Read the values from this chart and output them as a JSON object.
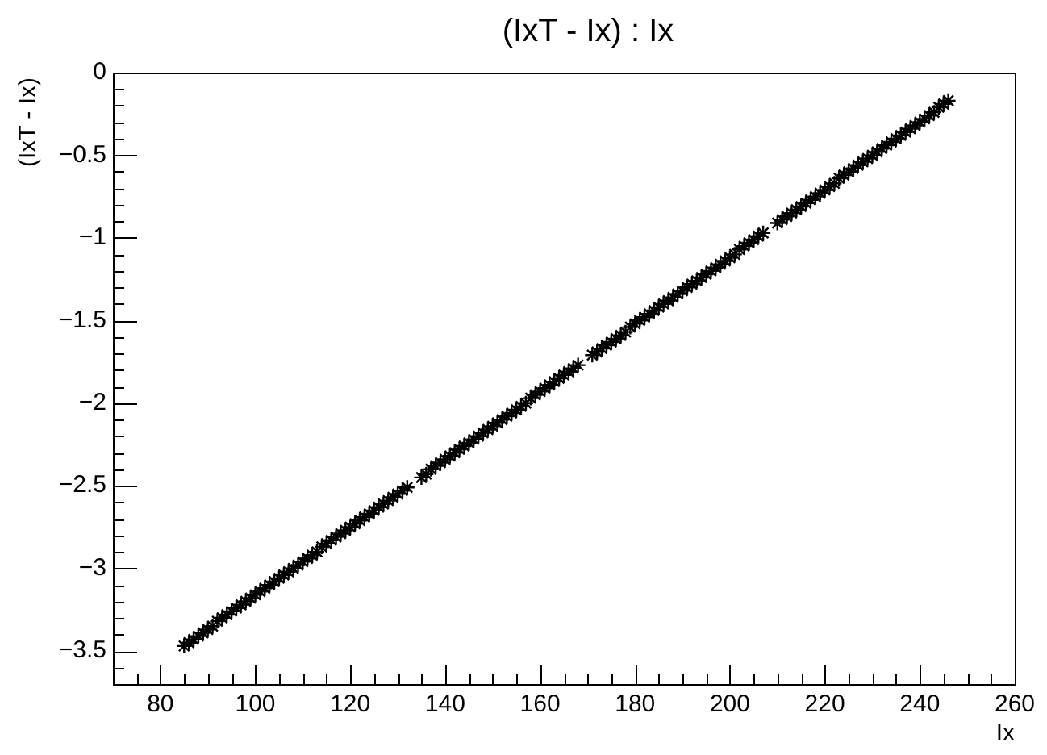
{
  "chart_data": {
    "type": "scatter",
    "title": "(IxT - Ix) : Ix",
    "xlabel": "Ix",
    "ylabel": "(IxT - Ix)",
    "color": "#000000",
    "marker": "cross",
    "xlim": [
      70,
      260
    ],
    "ylim": [
      -3.7,
      0
    ],
    "xticks": [
      {
        "value": 70,
        "label": null
      },
      {
        "value": 75,
        "label": null
      },
      80,
      {
        "value": 85,
        "label": null
      },
      {
        "value": 90,
        "label": null
      },
      {
        "value": 95,
        "label": null
      },
      100,
      {
        "value": 105,
        "label": null
      },
      {
        "value": 110,
        "label": null
      },
      {
        "value": 115,
        "label": null
      },
      120,
      {
        "value": 125,
        "label": null
      },
      {
        "value": 130,
        "label": null
      },
      {
        "value": 135,
        "label": null
      },
      140,
      {
        "value": 145,
        "label": null
      },
      {
        "value": 150,
        "label": null
      },
      {
        "value": 155,
        "label": null
      },
      160,
      {
        "value": 165,
        "label": null
      },
      {
        "value": 170,
        "label": null
      },
      {
        "value": 175,
        "label": null
      },
      180,
      {
        "value": 185,
        "label": null
      },
      {
        "value": 190,
        "label": null
      },
      {
        "value": 195,
        "label": null
      },
      200,
      {
        "value": 205,
        "label": null
      },
      {
        "value": 210,
        "label": null
      },
      {
        "value": 215,
        "label": null
      },
      220,
      {
        "value": 225,
        "label": null
      },
      {
        "value": 230,
        "label": null
      },
      {
        "value": 235,
        "label": null
      },
      240,
      {
        "value": 245,
        "label": null
      },
      {
        "value": 250,
        "label": null
      },
      {
        "value": 255,
        "label": null
      },
      260
    ],
    "yticks": [
      0,
      {
        "value": -0.1,
        "label": null
      },
      {
        "value": -0.2,
        "label": null
      },
      {
        "value": -0.3,
        "label": null
      },
      {
        "value": -0.4,
        "label": null
      },
      {
        "value": -0.5,
        "label": "−0.5"
      },
      {
        "value": -0.6,
        "label": null
      },
      {
        "value": -0.7,
        "label": null
      },
      {
        "value": -0.8,
        "label": null
      },
      {
        "value": -0.9,
        "label": null
      },
      {
        "value": -1,
        "label": "−1"
      },
      {
        "value": -1.1,
        "label": null
      },
      {
        "value": -1.2,
        "label": null
      },
      {
        "value": -1.3,
        "label": null
      },
      {
        "value": -1.4,
        "label": null
      },
      {
        "value": -1.5,
        "label": "−1.5"
      },
      {
        "value": -1.6,
        "label": null
      },
      {
        "value": -1.7,
        "label": null
      },
      {
        "value": -1.8,
        "label": null
      },
      {
        "value": -1.9,
        "label": null
      },
      {
        "value": -2,
        "label": "−2"
      },
      {
        "value": -2.1,
        "label": null
      },
      {
        "value": -2.2,
        "label": null
      },
      {
        "value": -2.3,
        "label": null
      },
      {
        "value": -2.4,
        "label": null
      },
      {
        "value": -2.5,
        "label": "−2.5"
      },
      {
        "value": -2.6,
        "label": null
      },
      {
        "value": -2.7,
        "label": null
      },
      {
        "value": -2.8,
        "label": null
      },
      {
        "value": -2.9,
        "label": null
      },
      {
        "value": -3,
        "label": "−3"
      },
      {
        "value": -3.1,
        "label": null
      },
      {
        "value": -3.2,
        "label": null
      },
      {
        "value": -3.3,
        "label": null
      },
      {
        "value": -3.4,
        "label": null
      },
      {
        "value": -3.5,
        "label": "−3.5"
      },
      {
        "value": -3.6,
        "label": null
      },
      {
        "value": -3.7,
        "label": null
      }
    ],
    "x": [
      85,
      86,
      87,
      88,
      89,
      90,
      91,
      92,
      93,
      94,
      95,
      96,
      97,
      98,
      99,
      100,
      101,
      102,
      103,
      104,
      105,
      106,
      107,
      108,
      109,
      110,
      111,
      112,
      113,
      114,
      115,
      116,
      117,
      118,
      119,
      120,
      121,
      122,
      123,
      124,
      125,
      126,
      127,
      128,
      129,
      130,
      131,
      132,
      135,
      136,
      137,
      138,
      139,
      140,
      141,
      142,
      143,
      144,
      145,
      146,
      147,
      148,
      149,
      150,
      151,
      152,
      153,
      154,
      155,
      156,
      157,
      158,
      159,
      160,
      161,
      162,
      163,
      164,
      165,
      166,
      167,
      168,
      171,
      172,
      173,
      174,
      175,
      176,
      177,
      178,
      179,
      180,
      181,
      182,
      183,
      184,
      185,
      186,
      187,
      188,
      189,
      190,
      191,
      192,
      193,
      194,
      195,
      196,
      197,
      198,
      199,
      200,
      201,
      202,
      203,
      204,
      205,
      206,
      207,
      210,
      211,
      212,
      213,
      214,
      215,
      216,
      217,
      218,
      219,
      220,
      221,
      222,
      223,
      224,
      225,
      226,
      227,
      228,
      229,
      230,
      231,
      232,
      233,
      234,
      235,
      236,
      237,
      238,
      239,
      240,
      241,
      242,
      243,
      244,
      245,
      246
    ],
    "values": [
      -3.47,
      -3.45,
      -3.43,
      -3.41,
      -3.39,
      -3.37,
      -3.35,
      -3.32,
      -3.3,
      -3.28,
      -3.26,
      -3.24,
      -3.22,
      -3.2,
      -3.18,
      -3.16,
      -3.14,
      -3.12,
      -3.1,
      -3.08,
      -3.06,
      -3.04,
      -3.02,
      -3.0,
      -2.98,
      -2.96,
      -2.94,
      -2.92,
      -2.9,
      -2.87,
      -2.85,
      -2.83,
      -2.81,
      -2.79,
      -2.77,
      -2.75,
      -2.73,
      -2.71,
      -2.69,
      -2.67,
      -2.65,
      -2.63,
      -2.61,
      -2.59,
      -2.57,
      -2.55,
      -2.53,
      -2.51,
      -2.45,
      -2.43,
      -2.4,
      -2.38,
      -2.36,
      -2.34,
      -2.32,
      -2.3,
      -2.28,
      -2.26,
      -2.24,
      -2.22,
      -2.2,
      -2.18,
      -2.16,
      -2.14,
      -2.12,
      -2.1,
      -2.08,
      -2.06,
      -2.04,
      -2.02,
      -2.0,
      -1.97,
      -1.95,
      -1.93,
      -1.91,
      -1.89,
      -1.87,
      -1.85,
      -1.83,
      -1.81,
      -1.79,
      -1.77,
      -1.71,
      -1.69,
      -1.67,
      -1.65,
      -1.63,
      -1.61,
      -1.59,
      -1.57,
      -1.54,
      -1.52,
      -1.5,
      -1.48,
      -1.46,
      -1.44,
      -1.42,
      -1.4,
      -1.38,
      -1.36,
      -1.34,
      -1.32,
      -1.3,
      -1.28,
      -1.26,
      -1.24,
      -1.22,
      -1.2,
      -1.18,
      -1.16,
      -1.14,
      -1.12,
      -1.1,
      -1.07,
      -1.05,
      -1.03,
      -1.01,
      -0.99,
      -0.97,
      -0.91,
      -0.89,
      -0.87,
      -0.85,
      -0.83,
      -0.81,
      -0.79,
      -0.77,
      -0.75,
      -0.73,
      -0.71,
      -0.69,
      -0.67,
      -0.64,
      -0.62,
      -0.6,
      -0.58,
      -0.56,
      -0.54,
      -0.52,
      -0.5,
      -0.48,
      -0.46,
      -0.44,
      -0.42,
      -0.4,
      -0.38,
      -0.36,
      -0.34,
      -0.32,
      -0.3,
      -0.28,
      -0.26,
      -0.24,
      -0.21,
      -0.19,
      -0.17
    ]
  }
}
